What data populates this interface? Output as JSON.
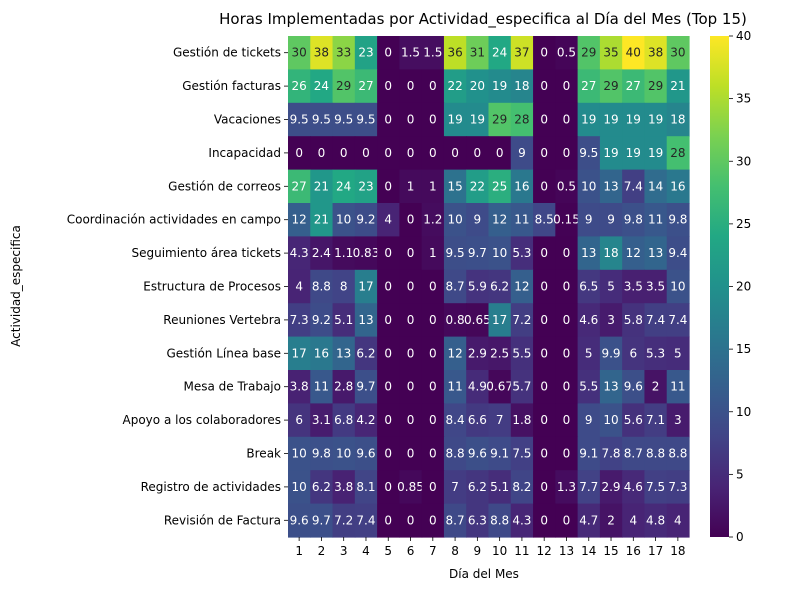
{
  "chart_data": {
    "type": "heatmap",
    "title": "Horas Implementadas por Actividad_especifica al Día del Mes (Top 15)",
    "xlabel": "Día del Mes",
    "ylabel": "Actividad_especifica",
    "x": [
      "1",
      "2",
      "3",
      "4",
      "5",
      "6",
      "7",
      "8",
      "9",
      "10",
      "11",
      "12",
      "13",
      "14",
      "15",
      "16",
      "17",
      "18"
    ],
    "y": [
      "Gestión de tickets",
      "Gestión facturas",
      "Vacaciones",
      "Incapacidad",
      "Gestión de correos",
      "Coordinación actividades en campo",
      "Seguimiento área tickets",
      "Estructura de Procesos",
      "Reuniones Vertebra",
      "Gestión Línea base",
      "Mesa de Trabajo",
      "Apoyo a los colaboradores",
      "Break",
      "Registro de actividades",
      "Revisión de Factura"
    ],
    "values": [
      [
        30,
        38,
        33,
        23,
        0,
        1.5,
        1.5,
        36,
        31,
        24,
        37,
        0,
        0.5,
        29,
        35,
        40,
        38,
        30
      ],
      [
        26,
        24,
        29,
        27,
        0,
        0,
        0,
        22,
        20,
        19,
        18,
        0,
        0,
        27,
        29,
        27,
        29,
        21
      ],
      [
        9.5,
        9.5,
        9.5,
        9.5,
        0,
        0,
        0,
        19,
        19,
        29,
        28,
        0,
        0,
        19,
        19,
        19,
        19,
        18
      ],
      [
        0,
        0,
        0,
        0,
        0,
        0,
        0,
        0,
        0,
        0,
        9,
        0,
        0,
        9.5,
        19,
        19,
        19,
        28
      ],
      [
        27,
        21,
        24,
        23,
        0,
        1,
        1,
        15,
        22,
        25,
        16,
        0,
        0.5,
        10,
        13,
        7.4,
        14,
        16
      ],
      [
        12,
        21,
        10,
        9.2,
        4,
        0,
        1.2,
        10,
        9,
        12,
        11,
        8.5,
        0.15,
        9,
        9,
        9.8,
        11,
        9.8
      ],
      [
        4.3,
        2.4,
        1.1,
        0.83,
        0,
        0,
        1,
        9.5,
        9.7,
        10,
        5.3,
        0,
        0,
        13,
        18,
        12,
        13,
        9.4
      ],
      [
        4,
        8.8,
        8,
        17,
        0,
        0,
        0,
        8.7,
        5.9,
        6.2,
        12,
        0,
        0,
        6.5,
        5,
        3.5,
        3.5,
        10
      ],
      [
        7.3,
        9.2,
        5.1,
        13,
        0,
        0,
        0,
        0.8,
        0.65,
        17,
        7.2,
        0,
        0,
        4.6,
        3,
        5.8,
        7.4,
        7.4
      ],
      [
        17,
        16,
        13,
        6.2,
        0,
        0,
        0,
        12,
        2.9,
        2.5,
        5.5,
        0,
        0,
        5,
        9.9,
        6,
        5.3,
        5
      ],
      [
        3.8,
        11,
        2.8,
        9.7,
        0,
        0,
        0,
        11,
        4.9,
        0.67,
        5.7,
        0,
        0,
        5.5,
        13,
        9.6,
        2,
        11
      ],
      [
        6,
        3.1,
        6.8,
        4.2,
        0,
        0,
        0,
        8.4,
        6.6,
        7,
        1.8,
        0,
        0,
        9,
        10,
        5.6,
        7.1,
        3
      ],
      [
        10,
        9.8,
        10,
        9.6,
        0,
        0,
        0,
        8.8,
        9.6,
        9.1,
        7.5,
        0,
        0,
        9.1,
        7.8,
        8.7,
        8.8,
        8.8
      ],
      [
        10,
        6.2,
        3.8,
        8.1,
        0,
        0.85,
        0,
        7,
        6.2,
        5.1,
        8.2,
        0,
        1.3,
        7.7,
        2.9,
        4.6,
        7.5,
        7.3
      ],
      [
        9.6,
        9.7,
        7.2,
        7.4,
        0,
        0,
        0,
        8.7,
        6.3,
        8.8,
        4.3,
        0,
        0,
        4.7,
        2,
        4,
        4.8,
        4
      ]
    ],
    "zlim": [
      0,
      40
    ],
    "colormap": "viridis",
    "colorbar_ticks": [
      0,
      5,
      10,
      15,
      20,
      25,
      30,
      35,
      40
    ],
    "grid": false
  }
}
